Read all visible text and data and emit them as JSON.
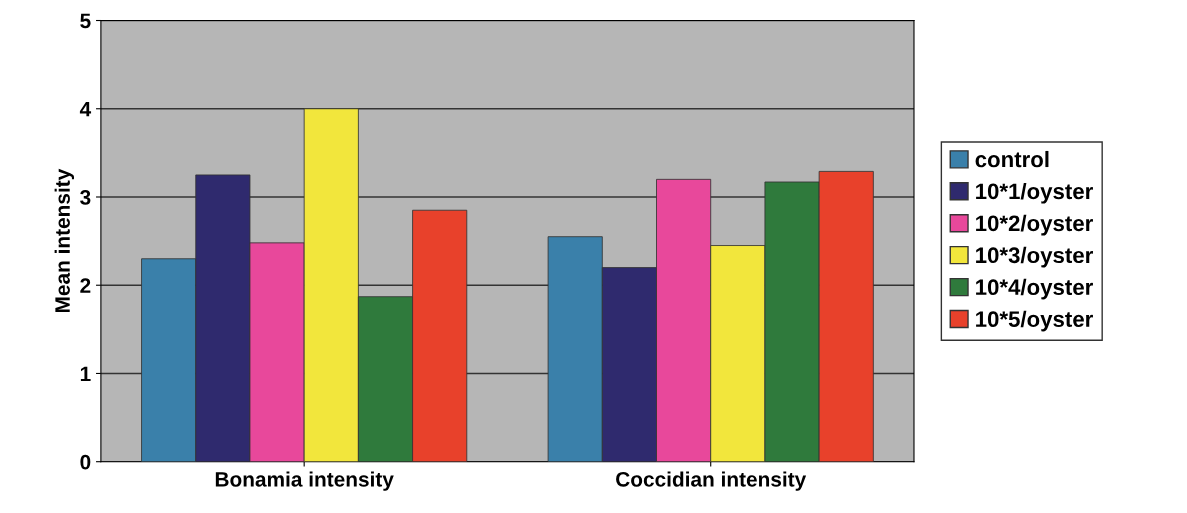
{
  "chart_data": {
    "type": "bar",
    "ylabel": "Mean intensity",
    "categories": [
      "Bonamia intensity",
      "Coccidian intensity"
    ],
    "series": [
      {
        "name": "control",
        "color": "#3a80aa",
        "values": [
          2.3,
          2.55
        ]
      },
      {
        "name": "10*1/oyster",
        "color": "#2f2a6e",
        "values": [
          3.25,
          2.2
        ]
      },
      {
        "name": "10*2/oyster",
        "color": "#e8489b",
        "values": [
          2.48,
          3.2
        ]
      },
      {
        "name": "10*3/oyster",
        "color": "#f2e63c",
        "values": [
          4.0,
          2.45
        ]
      },
      {
        "name": "10*4/oyster",
        "color": "#2f7a3c",
        "values": [
          1.87,
          3.17
        ]
      },
      {
        "name": "10*5/oyster",
        "color": "#e8412b",
        "values": [
          2.85,
          3.29
        ]
      }
    ],
    "ylim": [
      0,
      5
    ],
    "yticks": [
      0,
      1,
      2,
      3,
      4,
      5
    ],
    "grid": "y",
    "legend": "right"
  }
}
